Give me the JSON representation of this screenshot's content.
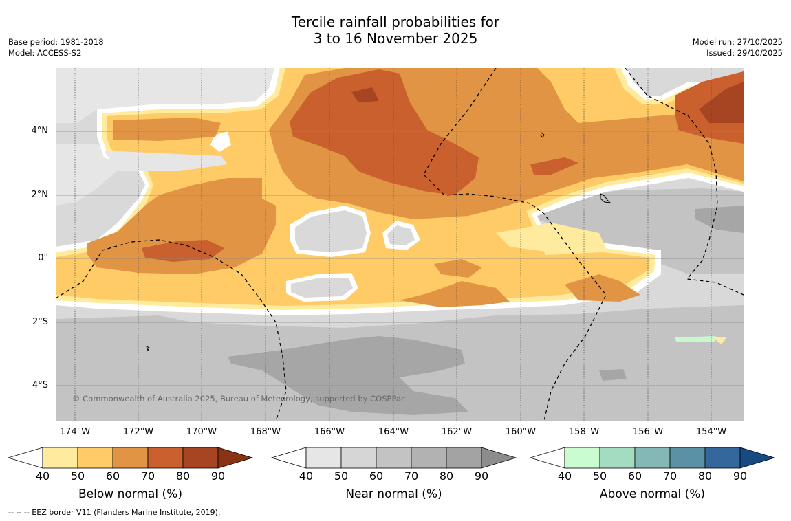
{
  "title": {
    "line1": "Tercile rainfall probabilities for",
    "line2": "3 to 16 November 2025"
  },
  "meta": {
    "base_period": "Base period: 1981-2018",
    "model": "Model: ACCESS-S2",
    "model_run": "Model run: 27/10/2025",
    "issued": "Issued: 29/10/2025"
  },
  "map": {
    "copyright": "© Commonwealth of Australia 2025, Bureau of Meteorology, supported by COSPPac",
    "lat_labels": [
      "4°N",
      "2°N",
      "0°",
      "2°S",
      "4°S"
    ],
    "lon_labels": [
      "174°W",
      "172°W",
      "170°W",
      "168°W",
      "166°W",
      "164°W",
      "162°W",
      "160°W",
      "158°W",
      "156°W",
      "154°W"
    ],
    "colors": {
      "gray_base": "#d9d9d9",
      "gray_light": "#e6e6e6",
      "gray_mid": "#c3c3c3",
      "gray_dark": "#a6a6a6",
      "below_40": "#ffeb9e",
      "below_50": "#fecb67",
      "below_60": "#e09444",
      "below_70": "#c9602e",
      "below_80": "#a74522",
      "above_40": "#c9f8cd"
    }
  },
  "colorbars": [
    {
      "name": "Below normal (%)",
      "ticks": [
        "40",
        "50",
        "60",
        "70",
        "80",
        "90"
      ],
      "colors": [
        "#ffffff",
        "#ffeb9e",
        "#fecb67",
        "#e09444",
        "#c9602e",
        "#a74522",
        "#8a3214"
      ]
    },
    {
      "name": "Near normal (%)",
      "ticks": [
        "40",
        "50",
        "60",
        "70",
        "80",
        "90"
      ],
      "colors": [
        "#ffffff",
        "#e6e6e6",
        "#d6d6d6",
        "#c3c3c3",
        "#b2b2b2",
        "#a3a3a3",
        "#8c8c8c"
      ]
    },
    {
      "name": "Above normal (%)",
      "ticks": [
        "40",
        "50",
        "60",
        "70",
        "80",
        "90"
      ],
      "colors": [
        "#ffffff",
        "#c9fdd0",
        "#a4dcc2",
        "#84b8b6",
        "#5b91a4",
        "#34679b",
        "#174a82"
      ]
    }
  ],
  "footer": "--  --  -- EEZ border V11 (Flanders Marine Institute, 2019)."
}
